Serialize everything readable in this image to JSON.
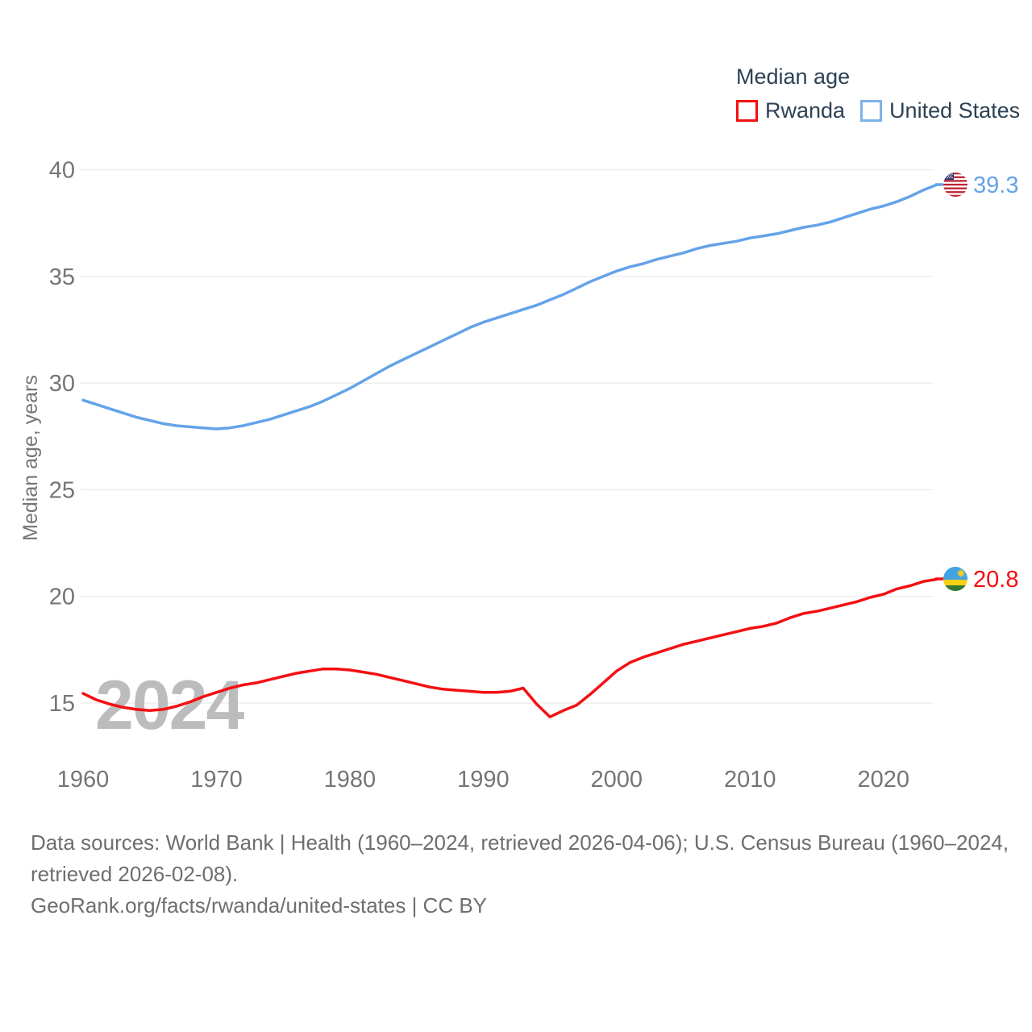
{
  "legend": {
    "title": "Median age",
    "items": [
      {
        "label": "Rwanda",
        "color": "#f40f12"
      },
      {
        "label": "United States",
        "color": "#7db3ea"
      }
    ]
  },
  "watermark": "2024",
  "y_axis": {
    "title": "Median age, years"
  },
  "end_labels": {
    "united_states": "39.3",
    "rwanda": "20.8"
  },
  "flags": {
    "united_states": "us-flag-icon",
    "rwanda": "rwanda-flag-icon"
  },
  "footer": {
    "lines": [
      "Data sources: World Bank | Health (1960–2024, retrieved 2026-04-06); U.S. Census Bureau (1960–2024,",
      "retrieved 2026-02-08).",
      "GeoRank.org/facts/rwanda/united-states | CC BY"
    ]
  },
  "colors": {
    "rwanda_line": "#f40f12",
    "united_states_line": "#64a3e8",
    "gridline": "#e9e9e9",
    "axis_text": "#757575",
    "legend_text": "#2d4154",
    "footer_text": "#6e6e6e",
    "watermark": "#bcbcbc"
  },
  "chart_data": {
    "type": "line",
    "title": "Median age",
    "xlabel": "",
    "ylabel": "Median age, years",
    "grid": true,
    "legend_position": "top-right",
    "xlim": [
      1960,
      2024
    ],
    "ylim": [
      13.2,
      41.5
    ],
    "x_start": 1960,
    "x_step": 1,
    "x_ticks": [
      1960,
      1970,
      1980,
      1990,
      2000,
      2010,
      2020
    ],
    "y_ticks": [
      15,
      20,
      25,
      30,
      35,
      40
    ],
    "series": [
      {
        "name": "Rwanda",
        "color": "#f40f12",
        "end_label": "20.8",
        "values": [
          15.45,
          15.15,
          14.95,
          14.8,
          14.7,
          14.65,
          14.7,
          14.85,
          15.05,
          15.3,
          15.5,
          15.7,
          15.85,
          15.95,
          16.1,
          16.25,
          16.4,
          16.5,
          16.6,
          16.6,
          16.55,
          16.45,
          16.35,
          16.2,
          16.05,
          15.9,
          15.75,
          15.65,
          15.6,
          15.55,
          15.5,
          15.5,
          15.55,
          15.7,
          14.95,
          14.35,
          14.65,
          14.9,
          15.4,
          15.95,
          16.5,
          16.9,
          17.15,
          17.35,
          17.55,
          17.75,
          17.9,
          18.05,
          18.2,
          18.35,
          18.5,
          18.6,
          18.75,
          19.0,
          19.2,
          19.3,
          19.45,
          19.6,
          19.75,
          19.95,
          20.1,
          20.35,
          20.5,
          20.7,
          20.8
        ]
      },
      {
        "name": "United States",
        "color": "#64a3e8",
        "end_label": "39.3",
        "values": [
          29.2,
          29.0,
          28.8,
          28.6,
          28.4,
          28.25,
          28.1,
          28.0,
          27.95,
          27.9,
          27.85,
          27.9,
          28.0,
          28.15,
          28.3,
          28.5,
          28.7,
          28.9,
          29.15,
          29.45,
          29.75,
          30.1,
          30.45,
          30.8,
          31.1,
          31.4,
          31.7,
          32.0,
          32.3,
          32.6,
          32.85,
          33.05,
          33.25,
          33.45,
          33.65,
          33.9,
          34.15,
          34.45,
          34.75,
          35.0,
          35.25,
          35.45,
          35.6,
          35.8,
          35.95,
          36.1,
          36.3,
          36.45,
          36.55,
          36.65,
          36.8,
          36.9,
          37.0,
          37.15,
          37.3,
          37.4,
          37.55,
          37.75,
          37.95,
          38.15,
          38.3,
          38.5,
          38.75,
          39.05,
          39.3
        ]
      }
    ]
  }
}
